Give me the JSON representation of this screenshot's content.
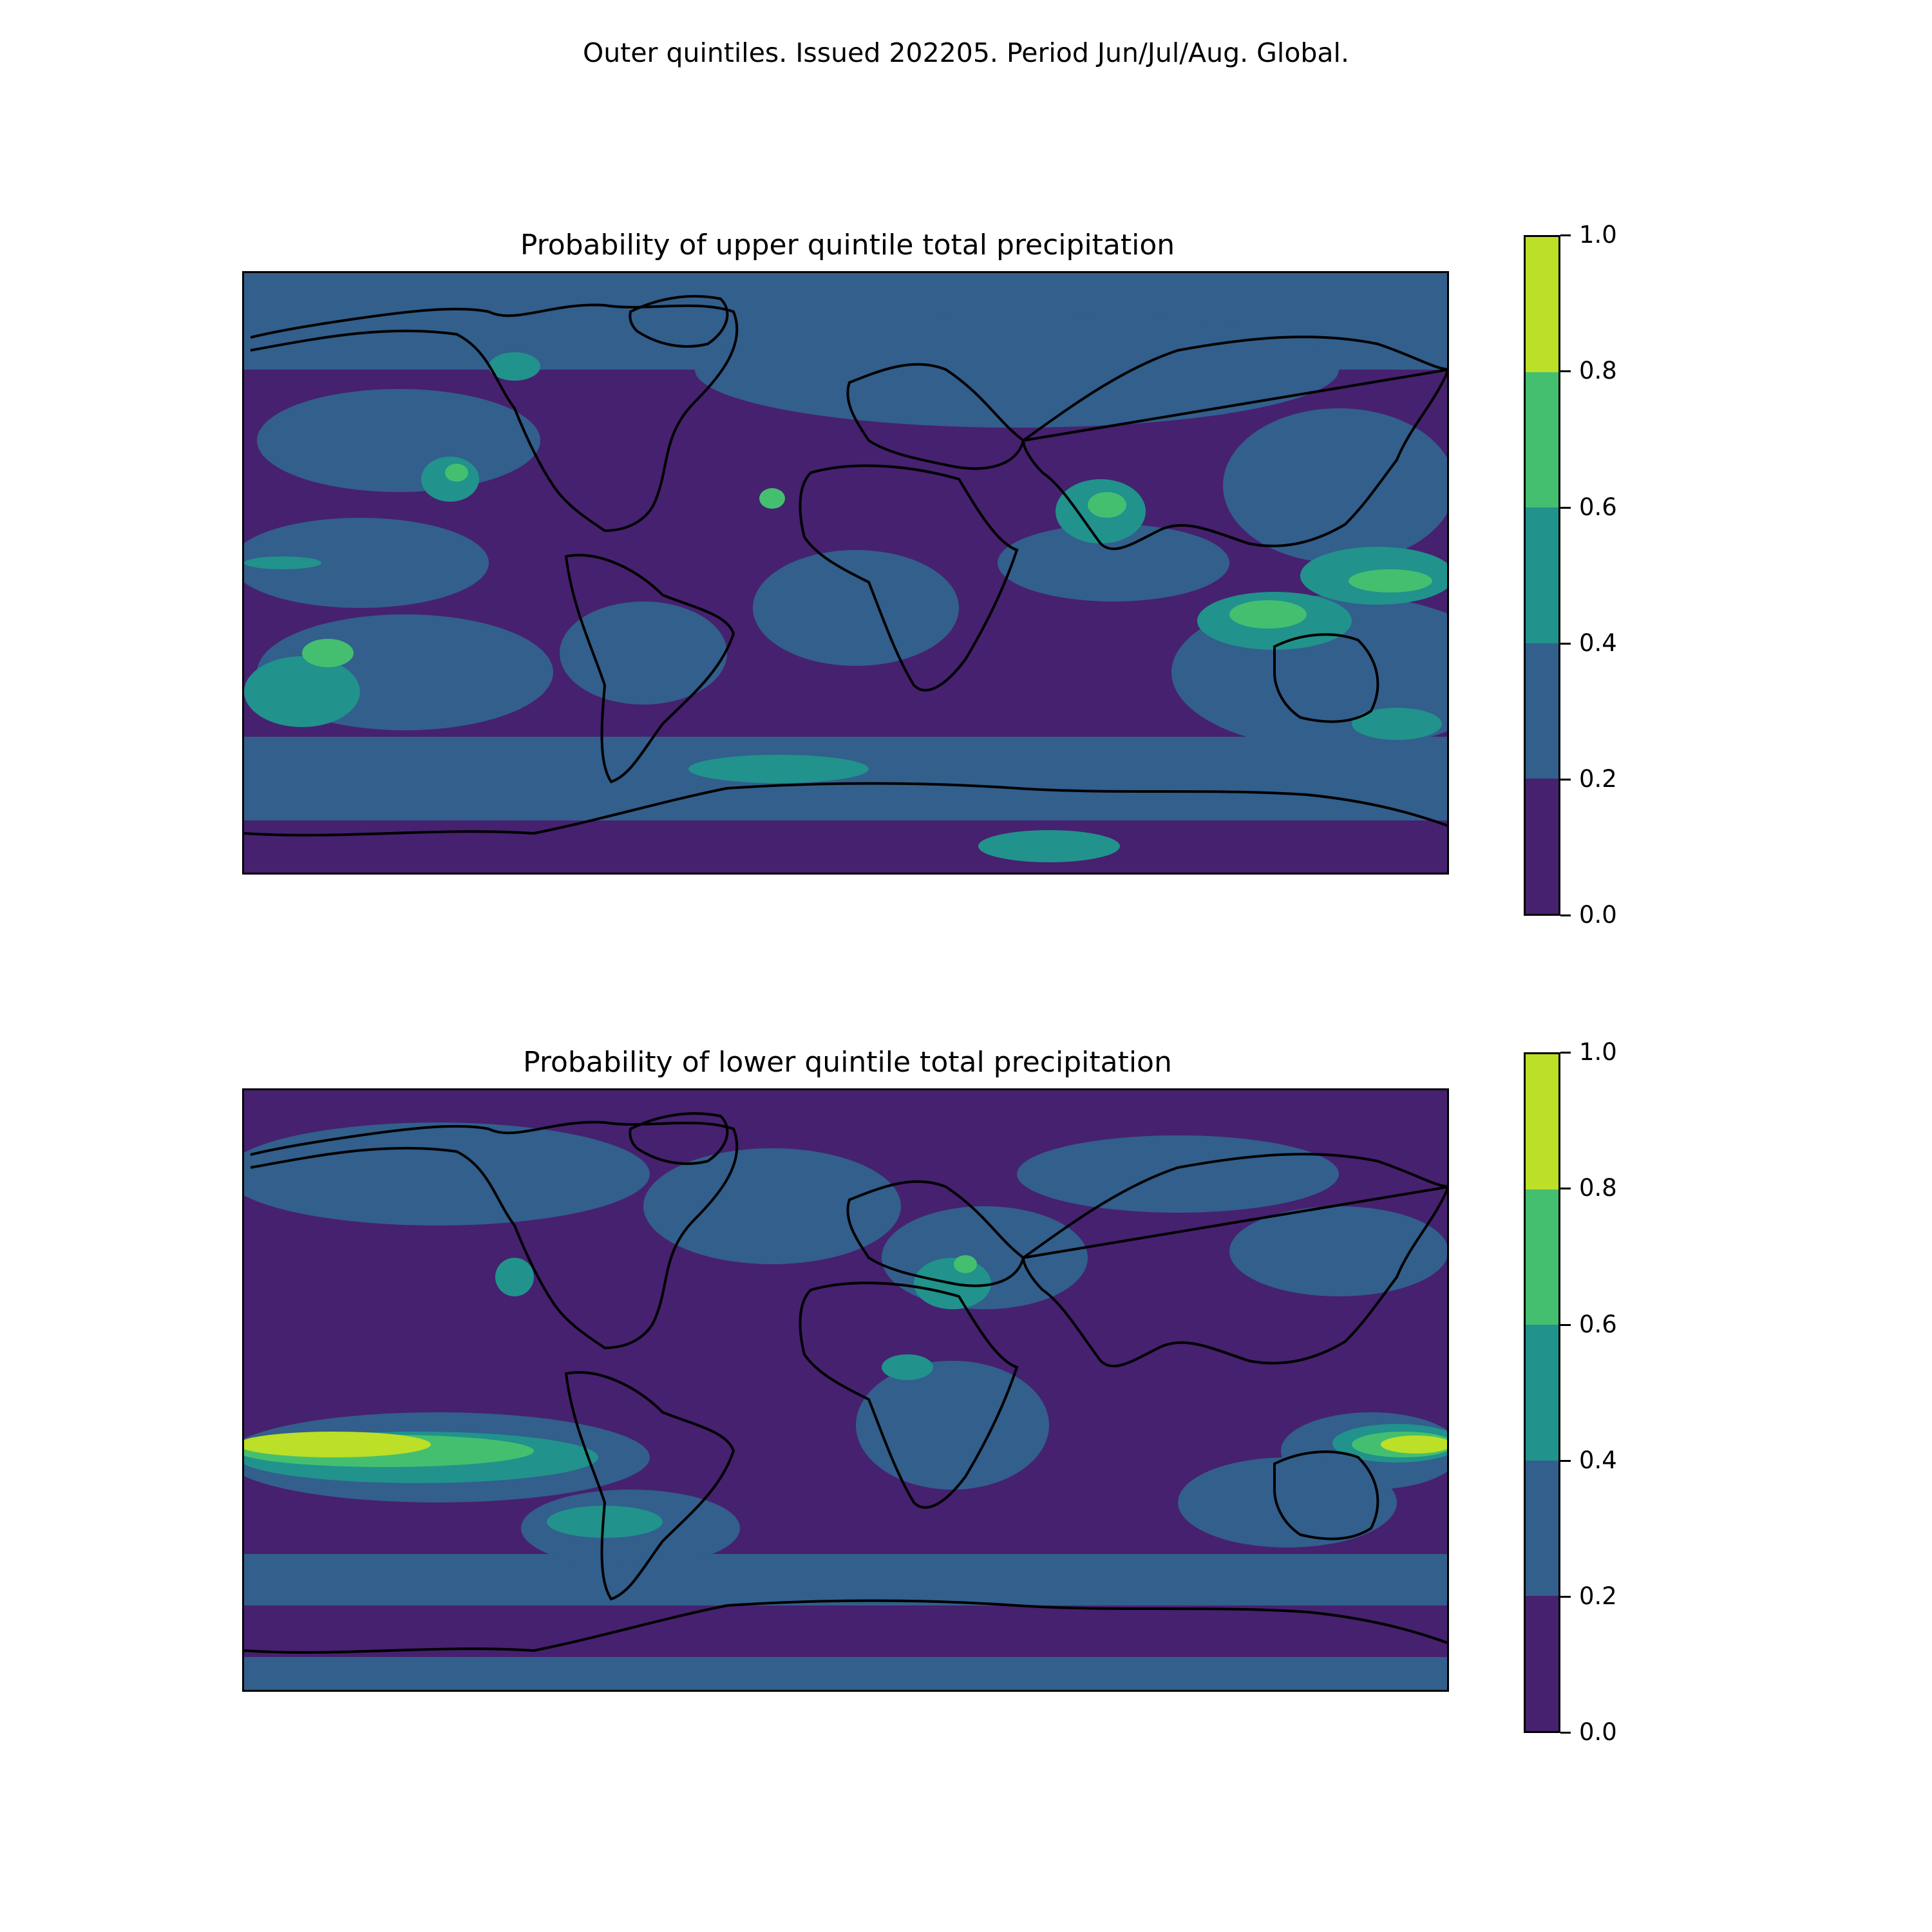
{
  "figure": {
    "suptitle": "Outer quintiles. Issued 202205. Period Jun/Jul/Aug. Global."
  },
  "colorbar": {
    "levels": [
      0.0,
      0.2,
      0.4,
      0.6,
      0.8,
      1.0
    ],
    "tick_labels": [
      "0.0",
      "0.2",
      "0.4",
      "0.6",
      "0.8",
      "1.0"
    ],
    "colors": [
      "#46216f",
      "#325f8c",
      "#21928c",
      "#44bf70",
      "#bcdf27"
    ]
  },
  "chart_data": [
    {
      "type": "heatmap",
      "title": "Probability of upper quintile total precipitation",
      "projection": "PlateCarree, global",
      "value_range": [
        0.0,
        1.0
      ],
      "class_edges": [
        0.0,
        0.2,
        0.4,
        0.6,
        0.8,
        1.0
      ],
      "regions_approx": [
        {
          "area": "Arctic / northern oceans",
          "class": [
            0.2,
            0.4
          ]
        },
        {
          "area": "Eastern tropical Pacific north of equator",
          "class": [
            0.4,
            0.6
          ]
        },
        {
          "area": "Maritime Continent / western tropical Pacific",
          "class": [
            0.6,
            0.8
          ]
        },
        {
          "area": "Indian subcontinent",
          "class": [
            0.6,
            0.8
          ]
        },
        {
          "area": "Southern Ocean band",
          "class": [
            0.2,
            0.4
          ]
        },
        {
          "area": "Most land and subtropical oceans",
          "class": [
            0.0,
            0.2
          ]
        }
      ]
    },
    {
      "type": "heatmap",
      "title": "Probability of lower quintile total precipitation",
      "projection": "PlateCarree, global",
      "value_range": [
        0.0,
        1.0
      ],
      "class_edges": [
        0.0,
        0.2,
        0.4,
        0.6,
        0.8,
        1.0
      ],
      "regions_approx": [
        {
          "area": "Central/eastern equatorial Pacific",
          "class": [
            0.8,
            1.0
          ]
        },
        {
          "area": "Equatorial Pacific margins",
          "class": [
            0.6,
            0.8
          ]
        },
        {
          "area": "Black Sea / Middle East",
          "class": [
            0.4,
            0.6
          ]
        },
        {
          "area": "Southern South America",
          "class": [
            0.4,
            0.6
          ]
        },
        {
          "area": "Mid-latitude oceans",
          "class": [
            0.2,
            0.4
          ]
        },
        {
          "area": "Polar regions and subtropics",
          "class": [
            0.0,
            0.2
          ]
        }
      ]
    }
  ]
}
